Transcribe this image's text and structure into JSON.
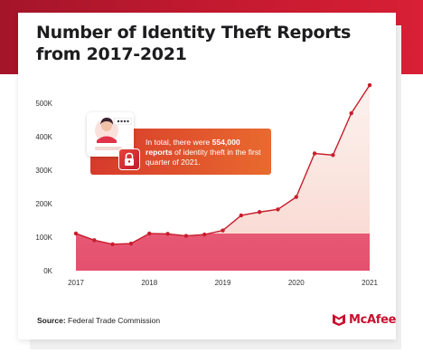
{
  "title_line1": "Number of Identity Theft Reports",
  "title_line2": "from 2017-2021",
  "source_label": "Source:",
  "source_value": " Federal Trade Commission",
  "brand": "McAfee",
  "callout": {
    "prefix": "In total, there were ",
    "highlight": "554,000 reports",
    "suffix": " of identity theft in the first quarter of 2021."
  },
  "colors": {
    "brand_red": "#c8102e",
    "line": "#c81e2c",
    "area_top": "#e34a6a",
    "area_bottom": "#fbe3df"
  },
  "icons": [
    "avatar-icon",
    "lock-icon",
    "password-dots-icon",
    "mcafee-shield-icon"
  ],
  "chart_data": {
    "type": "area",
    "title": "Number of Identity Theft Reports from 2017-2021",
    "xlabel": "",
    "ylabel": "",
    "xlim": [
      2017,
      2021
    ],
    "ylim": [
      0,
      550000
    ],
    "xticks": [
      "2017",
      "2018",
      "2019",
      "2020",
      "2021"
    ],
    "yticks": [
      "0K",
      "100K",
      "200K",
      "300K",
      "400K",
      "500K"
    ],
    "grid": false,
    "series": [
      {
        "x": [
          2017.0,
          2017.25,
          2017.5,
          2017.75,
          2018.0,
          2018.25,
          2018.5,
          2018.75,
          2019.0,
          2019.25,
          2019.5,
          2019.75,
          2020.0,
          2020.25,
          2020.5,
          2020.75,
          2021.0
        ],
        "values": [
          111000,
          91000,
          79000,
          81000,
          111000,
          110000,
          104000,
          108000,
          120000,
          165000,
          175000,
          183000,
          220000,
          350000,
          345000,
          470000,
          554000
        ]
      }
    ]
  }
}
